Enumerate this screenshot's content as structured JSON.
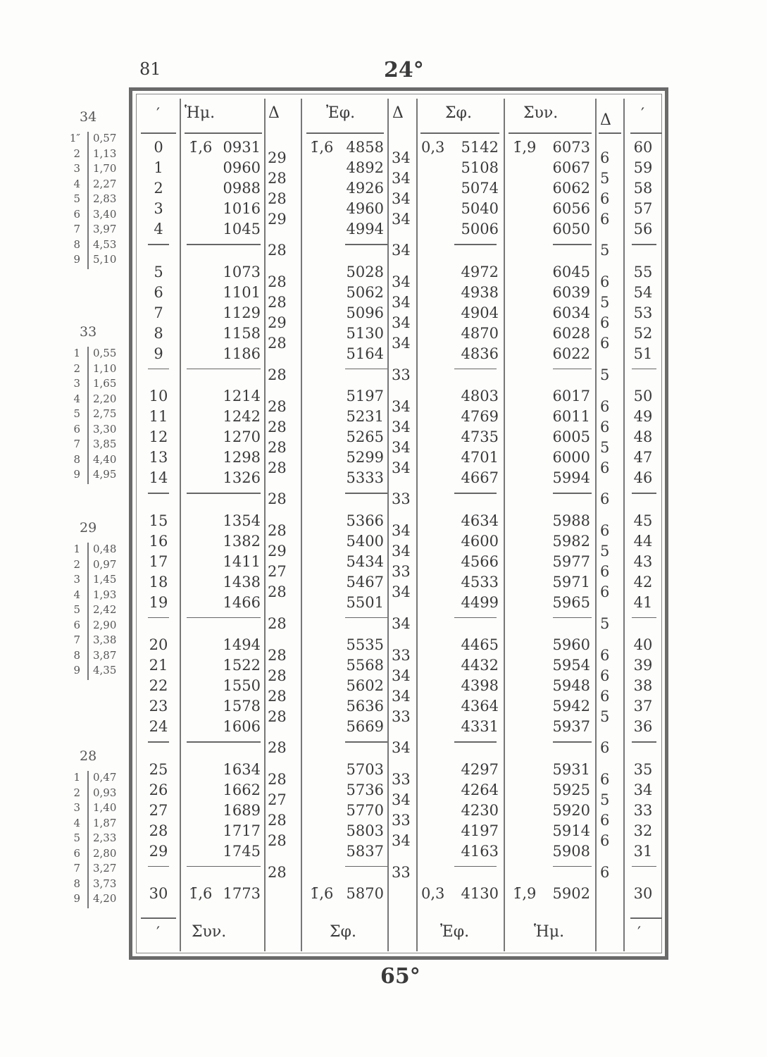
{
  "page_number": "81",
  "degree_top": "24°",
  "degree_bottom": "65°",
  "header": {
    "min_left": "′",
    "sin": "Ἡμ.",
    "d1": "Δ",
    "tan": "Ἐφ.",
    "d2": "Δ",
    "cot": "Σφ.",
    "cos": "Συν.",
    "d3": "Δ",
    "min_right": "′"
  },
  "footer": {
    "min_left": "′",
    "cos": "Συν.",
    "cot": "Σφ.",
    "tan": "Ἐφ.",
    "sin": "Ἡμ.",
    "min_right": "′"
  },
  "prefixes": {
    "sin": "1̄,6",
    "tan": "1̄,6",
    "cot": "0,3",
    "cos": "1̄,9"
  },
  "minutes_left": [
    "0",
    "1",
    "2",
    "3",
    "4",
    "5",
    "6",
    "7",
    "8",
    "9",
    "10",
    "11",
    "12",
    "13",
    "14",
    "15",
    "16",
    "17",
    "18",
    "19",
    "20",
    "21",
    "22",
    "23",
    "24",
    "25",
    "26",
    "27",
    "28",
    "29",
    "30"
  ],
  "minutes_right": [
    "60",
    "59",
    "58",
    "57",
    "56",
    "55",
    "54",
    "53",
    "52",
    "51",
    "50",
    "49",
    "48",
    "47",
    "46",
    "45",
    "44",
    "43",
    "42",
    "41",
    "40",
    "39",
    "38",
    "37",
    "36",
    "35",
    "34",
    "33",
    "32",
    "31",
    "30"
  ],
  "sin": [
    "0931",
    "0960",
    "0988",
    "1016",
    "1045",
    "1073",
    "1101",
    "1129",
    "1158",
    "1186",
    "1214",
    "1242",
    "1270",
    "1298",
    "1326",
    "1354",
    "1382",
    "1411",
    "1438",
    "1466",
    "1494",
    "1522",
    "1550",
    "1578",
    "1606",
    "1634",
    "1662",
    "1689",
    "1717",
    "1745",
    "1773"
  ],
  "sin_delta": [
    "29",
    "28",
    "28",
    "29",
    "28",
    "28",
    "28",
    "29",
    "28",
    "28",
    "28",
    "28",
    "28",
    "28",
    "28",
    "28",
    "29",
    "27",
    "28",
    "28",
    "28",
    "28",
    "28",
    "28",
    "28",
    "28",
    "27",
    "28",
    "28",
    "28"
  ],
  "tan": [
    "4858",
    "4892",
    "4926",
    "4960",
    "4994",
    "5028",
    "5062",
    "5096",
    "5130",
    "5164",
    "5197",
    "5231",
    "5265",
    "5299",
    "5333",
    "5366",
    "5400",
    "5434",
    "5467",
    "5501",
    "5535",
    "5568",
    "5602",
    "5636",
    "5669",
    "5703",
    "5736",
    "5770",
    "5803",
    "5837",
    "5870"
  ],
  "tan_delta": [
    "34",
    "34",
    "34",
    "34",
    "34",
    "34",
    "34",
    "34",
    "34",
    "33",
    "34",
    "34",
    "34",
    "34",
    "33",
    "34",
    "34",
    "33",
    "34",
    "34",
    "33",
    "34",
    "34",
    "33",
    "34",
    "33",
    "34",
    "33",
    "34",
    "33"
  ],
  "cot": [
    "5142",
    "5108",
    "5074",
    "5040",
    "5006",
    "4972",
    "4938",
    "4904",
    "4870",
    "4836",
    "4803",
    "4769",
    "4735",
    "4701",
    "4667",
    "4634",
    "4600",
    "4566",
    "4533",
    "4499",
    "4465",
    "4432",
    "4398",
    "4364",
    "4331",
    "4297",
    "4264",
    "4230",
    "4197",
    "4163",
    "4130"
  ],
  "cos": [
    "6073",
    "6067",
    "6062",
    "6056",
    "6050",
    "6045",
    "6039",
    "6034",
    "6028",
    "6022",
    "6017",
    "6011",
    "6005",
    "6000",
    "5994",
    "5988",
    "5982",
    "5977",
    "5971",
    "5965",
    "5960",
    "5954",
    "5948",
    "5942",
    "5937",
    "5931",
    "5925",
    "5920",
    "5914",
    "5908",
    "5902"
  ],
  "cos_delta": [
    "6",
    "5",
    "6",
    "6",
    "5",
    "6",
    "5",
    "6",
    "6",
    "5",
    "6",
    "6",
    "5",
    "6",
    "6",
    "6",
    "5",
    "6",
    "6",
    "5",
    "6",
    "6",
    "6",
    "5",
    "6",
    "6",
    "5",
    "6",
    "6",
    "6"
  ],
  "proportional_parts": [
    {
      "header": "34",
      "labels": [
        "1″",
        "2",
        "3",
        "4",
        "5",
        "6",
        "7",
        "8",
        "9"
      ],
      "values": [
        "0,57",
        "1,13",
        "1,70",
        "2,27",
        "2,83",
        "3,40",
        "3,97",
        "4,53",
        "5,10"
      ]
    },
    {
      "header": "33",
      "labels": [
        "1",
        "2",
        "3",
        "4",
        "5",
        "6",
        "7",
        "8",
        "9"
      ],
      "values": [
        "0,55",
        "1,10",
        "1,65",
        "2,20",
        "2,75",
        "3,30",
        "3,85",
        "4,40",
        "4,95"
      ]
    },
    {
      "header": "29",
      "labels": [
        "1",
        "2",
        "3",
        "4",
        "5",
        "6",
        "7",
        "8",
        "9"
      ],
      "values": [
        "0,48",
        "0,97",
        "1,45",
        "1,93",
        "2,42",
        "2,90",
        "3,38",
        "3,87",
        "4,35"
      ]
    },
    {
      "header": "28",
      "labels": [
        "1",
        "2",
        "3",
        "4",
        "5",
        "6",
        "7",
        "8",
        "9"
      ],
      "values": [
        "0,47",
        "0,93",
        "1,40",
        "1,87",
        "2,33",
        "2,80",
        "3,27",
        "3,73",
        "4,20"
      ]
    }
  ]
}
